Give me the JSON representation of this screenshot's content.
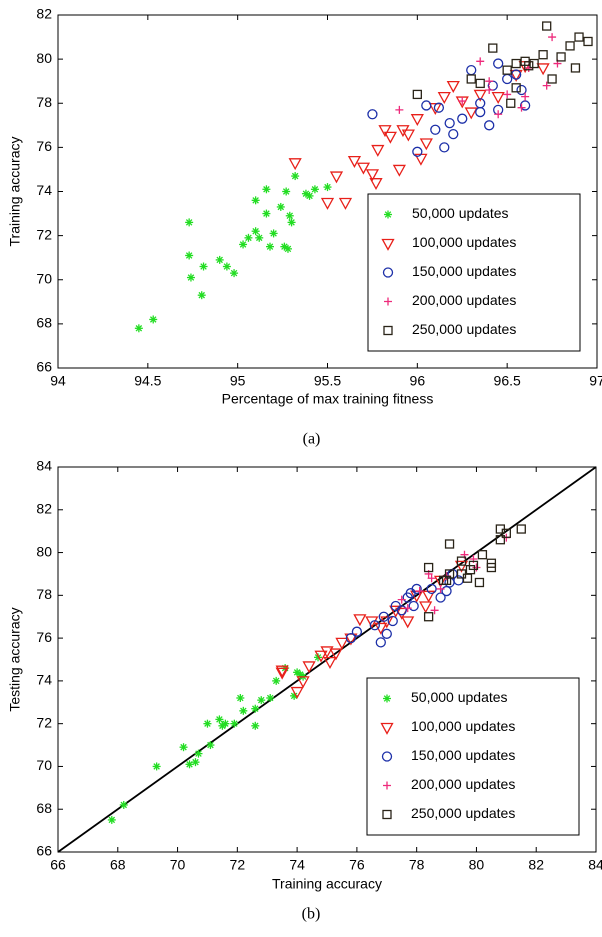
{
  "chart_data": [
    {
      "type": "scatter",
      "caption": "(a)",
      "xlabel": "Percentage of max training fitness",
      "ylabel": "Training accuracy",
      "xlim": [
        94,
        97
      ],
      "ylim": [
        66,
        82
      ],
      "xticks": [
        94,
        94.5,
        95,
        95.5,
        96,
        96.5,
        97
      ],
      "yticks": [
        66,
        68,
        70,
        72,
        74,
        76,
        78,
        80,
        82
      ],
      "legend": "lower right",
      "series": [
        {
          "name": "50,000 updates",
          "color": "#22dd22",
          "marker": "asterisk",
          "x": [
            94.45,
            94.53,
            94.73,
            94.73,
            94.74,
            94.8,
            94.81,
            94.9,
            94.94,
            94.98,
            95.03,
            95.06,
            95.1,
            95.1,
            95.12,
            95.16,
            95.16,
            95.18,
            95.2,
            95.24,
            95.26,
            95.27,
            95.29,
            95.3,
            95.32,
            95.38,
            95.43,
            95.5,
            95.28,
            95.4
          ],
          "y": [
            67.8,
            68.2,
            72.6,
            71.1,
            70.1,
            69.3,
            70.6,
            70.9,
            70.6,
            70.3,
            71.6,
            71.9,
            72.2,
            73.6,
            71.9,
            74.1,
            73.0,
            71.5,
            72.1,
            73.3,
            71.5,
            74.0,
            72.9,
            72.6,
            74.7,
            73.9,
            74.1,
            74.2,
            71.4,
            73.8
          ]
        },
        {
          "name": "100,000 updates",
          "color": "#e8201a",
          "marker": "triangle-down",
          "x": [
            95.32,
            95.5,
            95.55,
            95.6,
            95.65,
            95.7,
            95.75,
            95.77,
            95.78,
            95.82,
            95.85,
            95.9,
            95.92,
            95.95,
            96.0,
            96.02,
            96.05,
            96.1,
            96.15,
            96.2,
            96.25,
            96.3,
            96.35,
            96.45,
            96.55,
            96.6,
            96.7
          ],
          "y": [
            75.3,
            73.5,
            74.7,
            73.5,
            75.4,
            75.1,
            74.8,
            74.4,
            75.9,
            76.8,
            76.5,
            75.0,
            76.8,
            76.6,
            77.3,
            75.5,
            76.2,
            77.8,
            78.3,
            78.8,
            78.1,
            77.6,
            78.4,
            78.3,
            79.3,
            79.7,
            79.6
          ]
        },
        {
          "name": "150,000 updates",
          "color": "#1c2fa8",
          "marker": "circle",
          "x": [
            95.75,
            96.0,
            96.05,
            96.1,
            96.12,
            96.15,
            96.18,
            96.2,
            96.25,
            96.3,
            96.35,
            96.4,
            96.42,
            96.45,
            96.5,
            96.55,
            96.45,
            96.58,
            96.6,
            96.35
          ],
          "y": [
            77.5,
            75.8,
            77.9,
            76.8,
            77.8,
            76.0,
            77.1,
            76.6,
            77.3,
            79.5,
            78.0,
            77.0,
            78.8,
            77.7,
            79.1,
            79.3,
            79.8,
            78.6,
            77.9,
            77.6
          ]
        },
        {
          "name": "200,000 updates",
          "color": "#ee2a7b",
          "marker": "plus",
          "x": [
            95.9,
            96.25,
            96.35,
            96.4,
            96.45,
            96.5,
            96.6,
            96.62,
            96.72,
            96.75,
            96.78,
            96.4,
            96.58
          ],
          "y": [
            77.7,
            78.1,
            79.9,
            79.0,
            77.5,
            78.4,
            78.3,
            79.6,
            78.8,
            81.0,
            79.8,
            78.6,
            77.8
          ]
        },
        {
          "name": "250,000 updates",
          "color": "#2a2418",
          "marker": "square",
          "x": [
            96.0,
            96.3,
            96.35,
            96.42,
            96.5,
            96.52,
            96.55,
            96.6,
            96.65,
            96.7,
            96.72,
            96.75,
            96.8,
            96.85,
            96.88,
            96.9,
            96.95,
            96.55,
            96.62
          ],
          "y": [
            78.4,
            79.1,
            78.9,
            80.5,
            79.5,
            78.0,
            79.8,
            79.9,
            79.8,
            80.2,
            81.5,
            79.1,
            80.1,
            80.6,
            79.6,
            81.0,
            80.8,
            78.7,
            79.7
          ]
        }
      ]
    },
    {
      "type": "scatter",
      "caption": "(b)",
      "xlabel": "Training accuracy",
      "ylabel": "Testing accuracy",
      "xlim": [
        66,
        84
      ],
      "ylim": [
        66,
        84
      ],
      "xticks": [
        66,
        68,
        70,
        72,
        74,
        76,
        78,
        80,
        82,
        84
      ],
      "yticks": [
        66,
        68,
        70,
        72,
        74,
        76,
        78,
        80,
        82,
        84
      ],
      "legend": "lower right",
      "diagonal": true,
      "series": [
        {
          "name": "50,000 updates",
          "color": "#22dd22",
          "marker": "asterisk",
          "x": [
            67.8,
            68.2,
            69.3,
            70.2,
            70.4,
            70.6,
            70.7,
            71.0,
            71.1,
            71.4,
            71.5,
            71.6,
            71.9,
            72.1,
            72.2,
            72.6,
            72.6,
            72.8,
            73.1,
            73.3,
            73.6,
            73.9,
            74.0,
            74.1,
            74.2,
            74.7
          ],
          "y": [
            67.5,
            68.2,
            70.0,
            70.9,
            70.1,
            70.2,
            70.6,
            72.0,
            71.0,
            72.2,
            71.9,
            72.0,
            72.0,
            73.2,
            72.6,
            71.9,
            72.7,
            73.1,
            73.2,
            74.0,
            74.6,
            73.3,
            74.4,
            74.3,
            74.2,
            75.1
          ]
        },
        {
          "name": "100,000 updates",
          "color": "#e8201a",
          "marker": "triangle-down",
          "x": [
            73.5,
            73.5,
            74.0,
            74.2,
            74.4,
            74.8,
            75.0,
            75.1,
            75.3,
            75.5,
            75.8,
            76.1,
            76.5,
            76.8,
            77.0,
            77.3,
            77.5,
            77.7,
            78.0,
            78.3,
            78.4,
            78.8,
            79.5
          ],
          "y": [
            74.5,
            74.4,
            73.5,
            74.0,
            74.7,
            75.2,
            75.4,
            74.9,
            75.3,
            75.8,
            76.0,
            76.9,
            76.8,
            76.5,
            76.8,
            77.3,
            77.2,
            76.8,
            78.0,
            77.5,
            78.0,
            78.7,
            79.4
          ]
        },
        {
          "name": "150,000 updates",
          "color": "#1c2fa8",
          "marker": "circle",
          "x": [
            75.8,
            76.0,
            76.6,
            76.8,
            76.9,
            77.0,
            77.2,
            77.3,
            77.5,
            77.7,
            77.9,
            78.0,
            78.5,
            78.8,
            79.0,
            79.2,
            79.4,
            79.1,
            77.8
          ],
          "y": [
            76.0,
            76.3,
            76.6,
            75.8,
            77.0,
            76.2,
            76.8,
            77.5,
            77.3,
            77.9,
            77.5,
            78.3,
            78.3,
            77.9,
            78.2,
            79.0,
            78.7,
            78.6,
            78.1
          ]
        },
        {
          "name": "200,000 updates",
          "color": "#ee2a7b",
          "marker": "plus",
          "x": [
            77.5,
            77.7,
            78.1,
            78.4,
            78.6,
            78.8,
            79.0,
            79.6,
            80.0,
            81.0,
            79.9,
            78.5
          ],
          "y": [
            77.8,
            77.4,
            78.2,
            79.0,
            77.3,
            78.3,
            78.9,
            79.9,
            79.3,
            80.7,
            79.7,
            78.8
          ]
        },
        {
          "name": "250,000 updates",
          "color": "#2a2418",
          "marker": "square",
          "x": [
            78.4,
            78.9,
            79.0,
            79.1,
            79.1,
            79.5,
            79.5,
            79.8,
            79.9,
            80.1,
            80.2,
            80.5,
            80.5,
            80.8,
            80.8,
            81.0,
            81.5,
            78.4,
            79.7
          ],
          "y": [
            79.3,
            78.7,
            78.7,
            79.0,
            80.4,
            79.6,
            79.0,
            79.2,
            79.4,
            78.6,
            79.9,
            79.5,
            79.3,
            81.1,
            80.6,
            80.9,
            81.1,
            77.0,
            78.8
          ]
        }
      ]
    }
  ]
}
